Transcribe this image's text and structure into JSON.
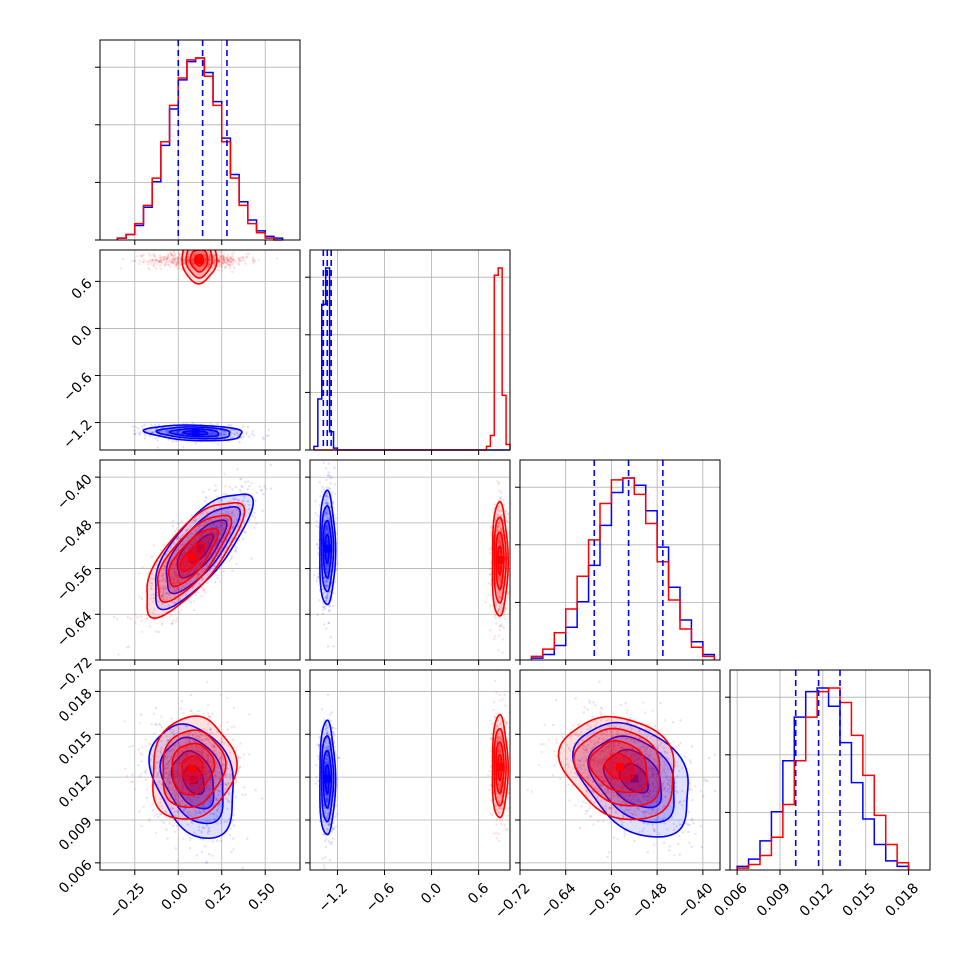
{
  "chart_data": {
    "type": "corner",
    "grid": true,
    "colors": {
      "series_a": "#ff0000",
      "series_b": "#0000ff",
      "grid": "#b0b0b0",
      "frame": "#000000"
    },
    "series": [
      {
        "color": "#0000ff"
      },
      {
        "color": "#ff0000"
      }
    ],
    "parameters": [
      {
        "range": [
          -0.45,
          0.7
        ],
        "ticks": [
          -0.25,
          0.0,
          0.25,
          0.5
        ],
        "tick_labels": [
          "−0.25",
          "0.00",
          "0.25",
          "0.50"
        ]
      },
      {
        "range": [
          -1.55,
          1.0
        ],
        "ticks": [
          -1.2,
          -0.6,
          0.0,
          0.6
        ],
        "tick_labels": [
          "−1.2",
          "−0.6",
          "0.0",
          "0.6"
        ]
      },
      {
        "range": [
          -0.72,
          -0.37
        ],
        "ticks": [
          -0.72,
          -0.64,
          -0.56,
          -0.48,
          -0.4
        ],
        "tick_labels": [
          "−0.72",
          "−0.64",
          "−0.56",
          "−0.48",
          "−0.40"
        ]
      },
      {
        "range": [
          0.0055,
          0.0195
        ],
        "ticks": [
          0.006,
          0.009,
          0.012,
          0.015,
          0.018
        ],
        "tick_labels": [
          "0.006",
          "0.009",
          "0.012",
          "0.015",
          "0.018"
        ]
      }
    ],
    "quantile_lines": [
      [
        0.0,
        0.14,
        0.28
      ],
      [
        -1.38,
        -1.33,
        -1.28
      ],
      [
        -0.59,
        -0.53,
        -0.47
      ],
      [
        0.0101,
        0.0117,
        0.0132
      ]
    ],
    "histograms": [
      {
        "bin_edges": [
          -0.35,
          -0.3,
          -0.25,
          -0.2,
          -0.15,
          -0.1,
          -0.05,
          0.0,
          0.05,
          0.1,
          0.15,
          0.2,
          0.25,
          0.3,
          0.35,
          0.4,
          0.45,
          0.5,
          0.55,
          0.6
        ],
        "series_b": [
          1,
          3,
          8,
          18,
          32,
          52,
          72,
          88,
          98,
          100,
          92,
          76,
          56,
          36,
          21,
          11,
          5,
          2,
          1
        ],
        "series_a": [
          1,
          3,
          9,
          19,
          34,
          54,
          74,
          89,
          99,
          100,
          90,
          74,
          54,
          34,
          19,
          9,
          4,
          1,
          0
        ]
      },
      {
        "bin_edges": [
          -1.5,
          -1.45,
          -1.4,
          -1.35,
          -1.3,
          -1.25,
          -1.2,
          0.7,
          0.75,
          0.8,
          0.85,
          0.9,
          0.95,
          1.0
        ],
        "series_b": [
          2,
          28,
          80,
          100,
          10,
          1,
          0,
          0,
          0,
          0,
          0,
          0,
          0
        ],
        "series_a": [
          0,
          0,
          0,
          0,
          0,
          0,
          0,
          2,
          8,
          96,
          100,
          30,
          3
        ]
      },
      {
        "bin_edges": [
          -0.7,
          -0.68,
          -0.66,
          -0.64,
          -0.62,
          -0.6,
          -0.58,
          -0.56,
          -0.54,
          -0.52,
          -0.5,
          -0.48,
          -0.46,
          -0.44,
          -0.42,
          -0.4,
          -0.38
        ],
        "series_b": [
          1,
          3,
          8,
          18,
          32,
          52,
          74,
          92,
          100,
          96,
          82,
          62,
          40,
          22,
          10,
          3
        ],
        "series_a": [
          2,
          6,
          15,
          28,
          46,
          66,
          86,
          99,
          100,
          91,
          75,
          54,
          33,
          17,
          7,
          2
        ]
      },
      {
        "bin_edges": [
          0.006,
          0.0068,
          0.0076,
          0.0084,
          0.0092,
          0.01,
          0.0108,
          0.0116,
          0.0124,
          0.0132,
          0.014,
          0.0148,
          0.0156,
          0.0164,
          0.0172,
          0.018
        ],
        "series_b": [
          2,
          6,
          16,
          32,
          60,
          84,
          98,
          100,
          90,
          70,
          48,
          28,
          14,
          5,
          2
        ],
        "series_a": [
          1,
          3,
          8,
          18,
          36,
          60,
          84,
          98,
          100,
          92,
          74,
          52,
          30,
          14,
          4
        ]
      }
    ],
    "pairs": [
      {
        "x": 0,
        "y": 1,
        "series_b_center": [
          0.1,
          -1.33
        ],
        "series_b_sd": [
          0.14,
          0.05
        ],
        "series_b_rho": -0.2,
        "series_a_center": [
          0.12,
          0.87
        ],
        "series_a_sd": [
          0.14,
          0.05
        ],
        "series_a_rho": 0.0
      },
      {
        "x": 0,
        "y": 2,
        "series_b_center": [
          0.13,
          -0.525
        ],
        "series_b_sd": [
          0.14,
          0.05
        ],
        "series_b_rho": 0.75,
        "series_a_center": [
          0.08,
          -0.54
        ],
        "series_a_sd": [
          0.14,
          0.05
        ],
        "series_a_rho": 0.75
      },
      {
        "x": 1,
        "y": 2,
        "series_b_center": [
          -1.33,
          -0.525
        ],
        "series_b_sd": [
          0.05,
          0.05
        ],
        "series_b_rho": 0.0,
        "series_a_center": [
          0.87,
          -0.545
        ],
        "series_a_sd": [
          0.05,
          0.05
        ],
        "series_a_rho": 0.0
      },
      {
        "x": 0,
        "y": 3,
        "series_b_center": [
          0.09,
          0.0118
        ],
        "series_b_sd": [
          0.12,
          0.002
        ],
        "series_b_rho": -0.3,
        "series_a_center": [
          0.08,
          0.0126
        ],
        "series_a_sd": [
          0.12,
          0.0018
        ],
        "series_a_rho": 0.1
      },
      {
        "x": 1,
        "y": 3,
        "series_b_center": [
          -1.33,
          0.0119
        ],
        "series_b_sd": [
          0.05,
          0.002
        ],
        "series_b_rho": 0.0,
        "series_a_center": [
          0.87,
          0.0127
        ],
        "series_a_sd": [
          0.05,
          0.0018
        ],
        "series_a_rho": 0.0
      },
      {
        "x": 2,
        "y": 3,
        "series_b_center": [
          -0.52,
          0.0119
        ],
        "series_b_sd": [
          0.05,
          0.002
        ],
        "series_b_rho": -0.35,
        "series_a_center": [
          -0.545,
          0.0127
        ],
        "series_a_sd": [
          0.05,
          0.0018
        ],
        "series_a_rho": -0.2
      }
    ]
  }
}
